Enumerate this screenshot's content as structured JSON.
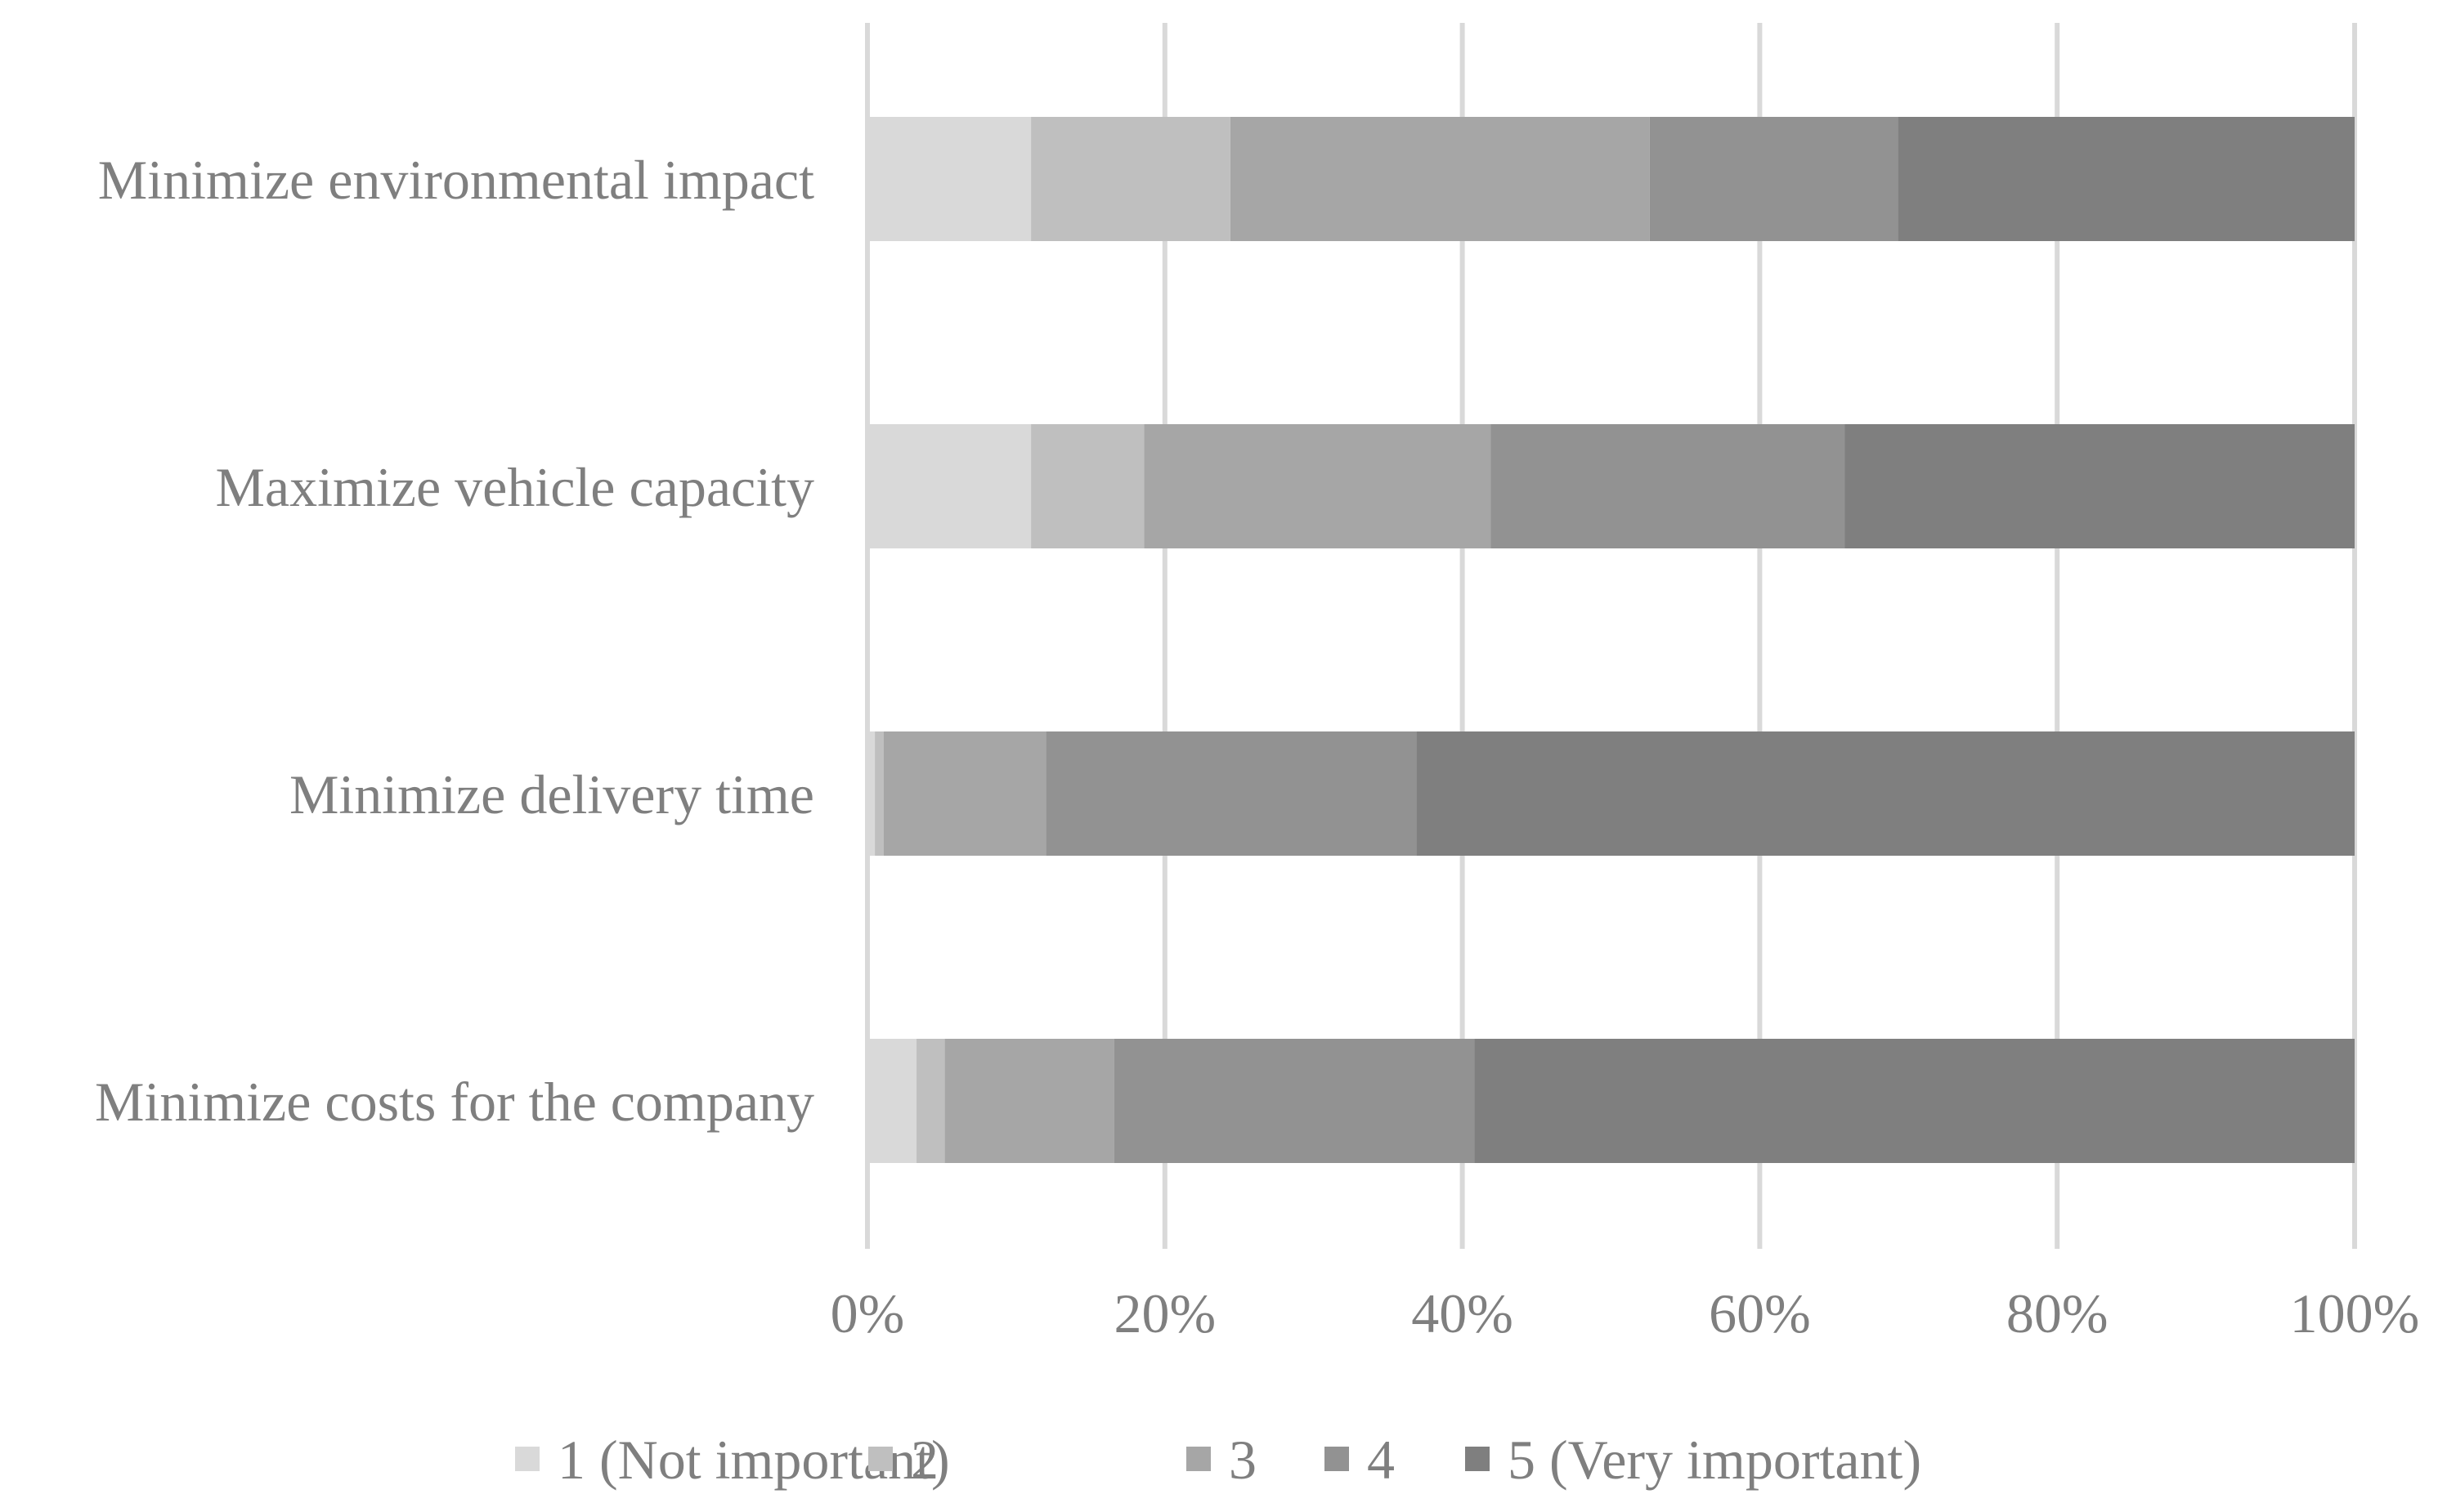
{
  "chart_data": {
    "type": "bar",
    "orientation": "horizontal",
    "stacked": true,
    "title": "",
    "xlabel": "",
    "ylabel": "",
    "xlim": [
      0,
      100
    ],
    "x_ticks": [
      0,
      20,
      40,
      60,
      80,
      100
    ],
    "x_tick_labels": [
      "0%",
      "20%",
      "40%",
      "60%",
      "80%",
      "100%"
    ],
    "grid": true,
    "legend_position": "bottom",
    "categories": [
      "Minimize environmental impact",
      "Maximize vehicle capacity",
      "Minimize delivery time ",
      "Minimize costs for the company"
    ],
    "series": [
      {
        "name": "1 (Not important)",
        "color": "#d9d9d9",
        "values": [
          11.0,
          11.0,
          0.5,
          3.3
        ]
      },
      {
        "name": "2",
        "color": "#bfbfbf",
        "values": [
          13.4,
          7.6,
          0.6,
          1.9
        ]
      },
      {
        "name": "3",
        "color": "#a6a6a6",
        "values": [
          28.2,
          23.3,
          10.9,
          11.4
        ]
      },
      {
        "name": "4",
        "color": "#929292",
        "values": [
          16.7,
          23.8,
          24.9,
          24.2
        ]
      },
      {
        "name": "5 (Very important)",
        "color": "#7f7f7f",
        "values": [
          30.7,
          34.3,
          63.1,
          59.2
        ]
      }
    ]
  }
}
